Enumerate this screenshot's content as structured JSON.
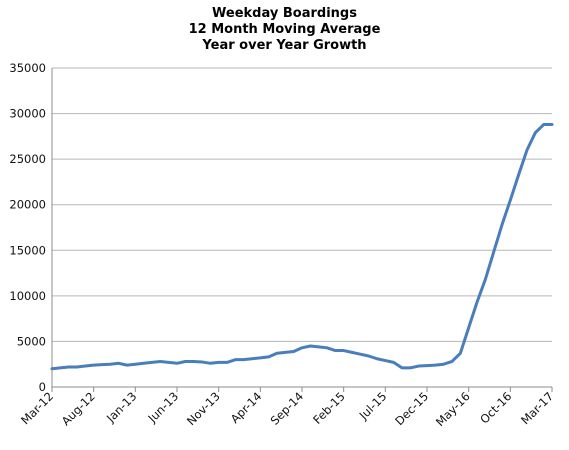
{
  "chart_data": {
    "type": "line",
    "title_lines": [
      "Weekday Boardings",
      "12 Month Moving Average",
      "Year over Year Growth"
    ],
    "xlabel": "",
    "ylabel": "",
    "ylim": [
      0,
      35000
    ],
    "yticks": [
      0,
      5000,
      10000,
      15000,
      20000,
      25000,
      30000,
      35000
    ],
    "ytick_labels": [
      "0",
      "5000",
      "10000",
      "15000",
      "20000",
      "25000",
      "30000",
      "35000"
    ],
    "xtick_labels": [
      "Mar-12",
      "Aug-12",
      "Jan-13",
      "Jun-13",
      "Nov-13",
      "Apr-14",
      "Sep-14",
      "Feb-15",
      "Jul-15",
      "Dec-15",
      "May-16",
      "Oct-16",
      "Mar-17"
    ],
    "grid": "horizontal",
    "legend": "none",
    "line_color": "#4a7ebb",
    "x": [
      "Mar-12",
      "Apr-12",
      "May-12",
      "Jun-12",
      "Jul-12",
      "Aug-12",
      "Sep-12",
      "Oct-12",
      "Nov-12",
      "Dec-12",
      "Jan-13",
      "Feb-13",
      "Mar-13",
      "Apr-13",
      "May-13",
      "Jun-13",
      "Jul-13",
      "Aug-13",
      "Sep-13",
      "Oct-13",
      "Nov-13",
      "Dec-13",
      "Jan-14",
      "Feb-14",
      "Mar-14",
      "Apr-14",
      "May-14",
      "Jun-14",
      "Jul-14",
      "Aug-14",
      "Sep-14",
      "Oct-14",
      "Nov-14",
      "Dec-14",
      "Jan-15",
      "Feb-15",
      "Mar-15",
      "Apr-15",
      "May-15",
      "Jun-15",
      "Jul-15",
      "Aug-15",
      "Sep-15",
      "Oct-15",
      "Nov-15",
      "Dec-15",
      "Jan-16",
      "Feb-16",
      "Mar-16",
      "Apr-16",
      "May-16",
      "Jun-16",
      "Jul-16",
      "Aug-16",
      "Sep-16",
      "Oct-16",
      "Nov-16",
      "Dec-16",
      "Jan-17",
      "Feb-17",
      "Mar-17"
    ],
    "series": [
      {
        "values": [
          2000,
          2100,
          2200,
          2200,
          2300,
          2400,
          2450,
          2500,
          2600,
          2400,
          2500,
          2600,
          2700,
          2800,
          2700,
          2600,
          2800,
          2800,
          2750,
          2600,
          2700,
          2700,
          3000,
          3000,
          3100,
          3200,
          3300,
          3700,
          3800,
          3900,
          4300,
          4500,
          4400,
          4300,
          4000,
          4000,
          3800,
          3600,
          3400,
          3100,
          2900,
          2700,
          2100,
          2100,
          2300,
          2350,
          2400,
          2500,
          2800,
          3700,
          6500,
          9300,
          11800,
          14800,
          17800,
          20500,
          23300,
          26000,
          27900,
          28800,
          28800
        ]
      }
    ]
  }
}
